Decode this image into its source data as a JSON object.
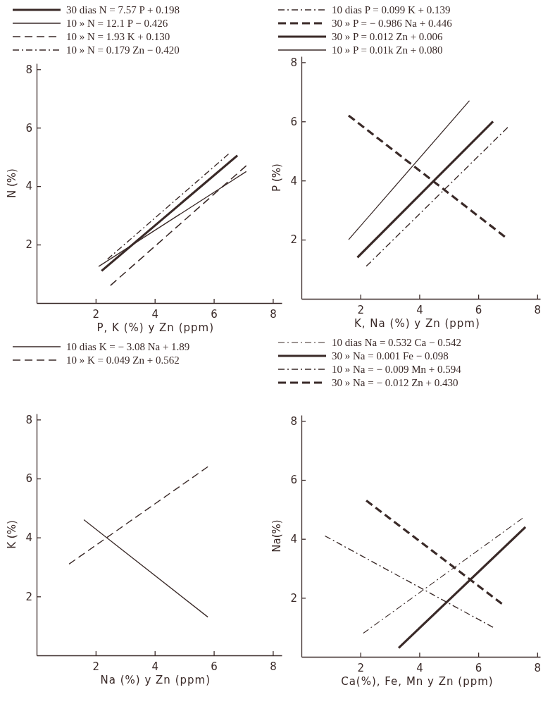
{
  "chart_data": [
    {
      "type": "line",
      "xlabel": "P, K (%) y Zn (ppm)",
      "ylabel": "N (%)",
      "xlim": [
        0,
        8.3
      ],
      "ylim": [
        0,
        8.2
      ],
      "xticks": [
        2,
        4,
        6,
        8
      ],
      "yticks": [
        2,
        4,
        6,
        8
      ],
      "grid": false,
      "legend": "top",
      "marker": "none",
      "series": [
        {
          "name": "30 dias N = 7.57 P + 0.198",
          "color": "#3a2a28",
          "line_style": "solid",
          "x": [
            2.2,
            6.8
          ],
          "values": [
            1.1,
            5.05
          ]
        },
        {
          "name": "10 » N = 12.1 P − 0.426",
          "color": "#3a2a28",
          "line_style": "solid",
          "x": [
            2.1,
            7.1
          ],
          "values": [
            1.25,
            4.5
          ]
        },
        {
          "name": "10 » N = 1.93 K + 0.130",
          "color": "#3a2a28",
          "line_style": "dashed",
          "x": [
            2.5,
            7.1
          ],
          "values": [
            0.6,
            4.7
          ]
        },
        {
          "name": "10 » N = 0.179 Zn − 0.420",
          "color": "#3a2a28",
          "line_style": "dashdot",
          "x": [
            2.4,
            6.5
          ],
          "values": [
            1.5,
            5.1
          ]
        }
      ]
    },
    {
      "type": "line",
      "xlabel": "K, Na (%) y Zn (ppm)",
      "ylabel": "P (%)",
      "xlim": [
        0,
        8.1
      ],
      "ylim": [
        0,
        8.2
      ],
      "xticks": [
        2,
        4,
        6,
        8
      ],
      "yticks": [
        2,
        4,
        6,
        8
      ],
      "grid": false,
      "legend": "top",
      "marker": "none",
      "series": [
        {
          "name": "10 dias P = 0.099 K + 0.139",
          "color": "#3a2a28",
          "line_style": "dashdot",
          "x": [
            2.2,
            7.0
          ],
          "values": [
            1.1,
            5.8
          ]
        },
        {
          "name": "30 » P = − 0.986 Na + 0.446",
          "color": "#3a2a28",
          "line_style": "dashed",
          "x": [
            1.6,
            6.9
          ],
          "values": [
            6.2,
            2.1
          ]
        },
        {
          "name": "30 » P = 0.012 Zn + 0.006",
          "color": "#3a2a28",
          "line_style": "solid",
          "x": [
            1.9,
            6.5
          ],
          "values": [
            1.4,
            6.0
          ]
        },
        {
          "name": "10 » P = 0.01k Zn + 0.080",
          "color": "#3a2a28",
          "line_style": "solid",
          "x": [
            1.6,
            5.7
          ],
          "values": [
            2.0,
            6.7
          ]
        }
      ]
    },
    {
      "type": "line",
      "xlabel": "Na (%) y Zn (ppm)",
      "ylabel": "K (%)",
      "xlim": [
        0,
        8.3
      ],
      "ylim": [
        0,
        8.2
      ],
      "xticks": [
        2,
        4,
        6,
        8
      ],
      "yticks": [
        2,
        4,
        6,
        8
      ],
      "grid": false,
      "legend": "top",
      "marker": "none",
      "series": [
        {
          "name": "10 dias K = − 3.08 Na + 1.89",
          "color": "#3a2a28",
          "line_style": "solid",
          "x": [
            1.6,
            5.8
          ],
          "values": [
            4.6,
            1.3
          ]
        },
        {
          "name": "10 » K = 0.049 Zn + 0.562",
          "color": "#3a2a28",
          "line_style": "dashed",
          "x": [
            1.1,
            5.8
          ],
          "values": [
            3.1,
            6.4
          ]
        }
      ]
    },
    {
      "type": "line",
      "xlabel": "Ca(%), Fe, Mn y Zn (ppm)",
      "ylabel": "Na(%)",
      "xlim": [
        0,
        8.1
      ],
      "ylim": [
        0,
        8.2
      ],
      "xticks": [
        2,
        4,
        6,
        8
      ],
      "yticks": [
        2,
        4,
        6,
        8
      ],
      "grid": false,
      "legend": "top",
      "marker": "none",
      "series": [
        {
          "name": "10 dias Na = 0.532 Ca − 0.542",
          "color": "#3a2a28",
          "line_style": "dashdot",
          "x": [
            2.1,
            7.5
          ],
          "values": [
            0.8,
            4.7
          ]
        },
        {
          "name": "30 » Na = 0.001 Fe − 0.098",
          "color": "#3a2a28",
          "line_style": "solid",
          "x": [
            3.3,
            7.6
          ],
          "values": [
            0.3,
            4.4
          ]
        },
        {
          "name": "10 » Na = − 0.009 Mn + 0.594",
          "color": "#3a2a28",
          "line_style": "dashdot",
          "x": [
            0.8,
            6.5
          ],
          "values": [
            4.1,
            1.0
          ]
        },
        {
          "name": "30 » Na = − 0.012 Zn + 0.430",
          "color": "#3a2a28",
          "line_style": "dashed",
          "x": [
            2.2,
            6.8
          ],
          "values": [
            5.3,
            1.8
          ]
        }
      ]
    }
  ]
}
